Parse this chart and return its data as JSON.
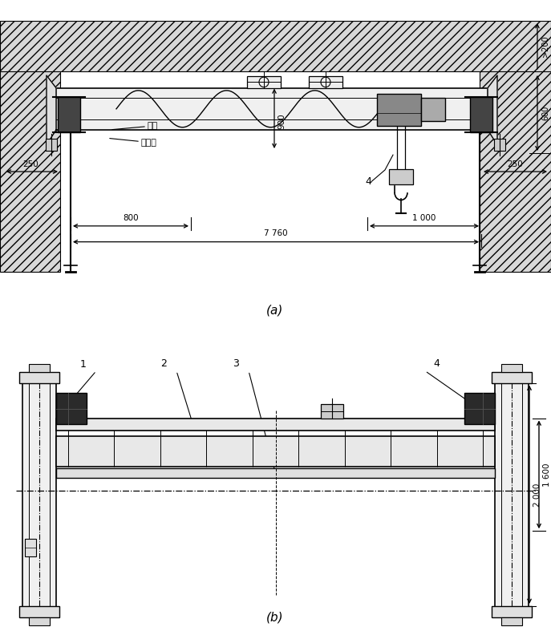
{
  "fig_width": 6.87,
  "fig_height": 7.92,
  "bg_color": "#ffffff",
  "line_color": "#000000",
  "label_a": "(a)",
  "label_b": "(b)",
  "dim_900": "900",
  "dim_200": ">200",
  "dim_600": "600",
  "dim_250_left": "250",
  "dim_250_right": "250",
  "dim_800": "800",
  "dim_7760": "7 760",
  "dim_1000": "1 000",
  "dim_1600": "1 600",
  "dim_2000": "2 000",
  "text_luqui": "路轨",
  "text_guidao": "轨道梁",
  "num_1": "1",
  "num_2": "2",
  "num_3": "3",
  "num_4": "4"
}
